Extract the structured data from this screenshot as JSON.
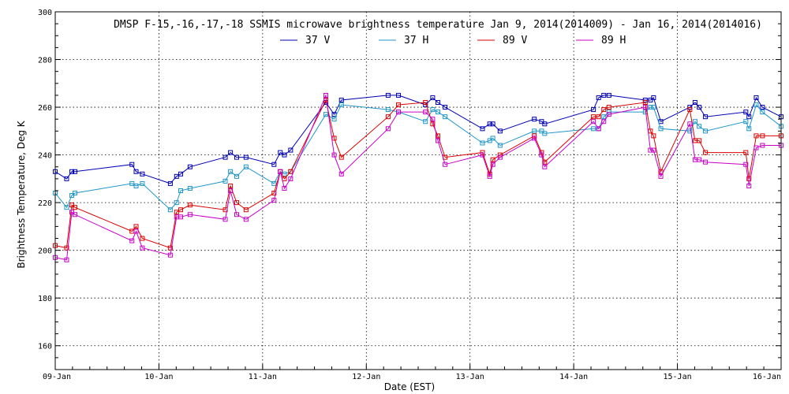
{
  "chart_data": {
    "type": "line",
    "title": "DMSP F-15,-16,-17,-18 SSMIS microwave brightness temperature Jan  9, 2014(2014009) - Jan 16, 2014(2014016)",
    "xlabel": "Date (EST)",
    "ylabel": "Brightness Temperature, Deg K",
    "xlim": [
      0,
      7
    ],
    "ylim": [
      150,
      300
    ],
    "yticks": [
      160,
      180,
      200,
      220,
      240,
      260,
      280,
      300
    ],
    "xticks": [
      0,
      1,
      2,
      3,
      4,
      5,
      6,
      7
    ],
    "xtick_labels": [
      "09-Jan",
      "10-Jan",
      "11-Jan",
      "12-Jan",
      "13-Jan",
      "14-Jan",
      "15-Jan",
      "16-Jan"
    ],
    "grid": true,
    "legend_position": "top",
    "x_units": "days since 09-Jan 00:00 EST",
    "series": [
      {
        "name": "37 V",
        "color": "#0000b4",
        "points": [
          [
            0.0,
            233
          ],
          [
            0.11,
            230
          ],
          [
            0.16,
            233
          ],
          [
            0.19,
            233
          ],
          [
            0.74,
            236
          ],
          [
            0.78,
            233
          ],
          [
            0.84,
            232
          ],
          [
            1.11,
            228
          ],
          [
            1.17,
            231
          ],
          [
            1.21,
            232
          ],
          [
            1.3,
            235
          ],
          [
            1.64,
            239
          ],
          [
            1.69,
            241
          ],
          [
            1.75,
            239
          ],
          [
            1.84,
            239
          ],
          [
            2.11,
            236
          ],
          [
            2.17,
            241
          ],
          [
            2.21,
            240
          ],
          [
            2.27,
            242
          ],
          [
            2.61,
            262
          ],
          [
            2.69,
            257
          ],
          [
            2.76,
            263
          ],
          [
            3.21,
            265
          ],
          [
            3.31,
            265
          ],
          [
            3.57,
            261
          ],
          [
            3.64,
            264
          ],
          [
            3.69,
            262
          ],
          [
            3.76,
            260
          ],
          [
            4.12,
            251
          ],
          [
            4.19,
            253
          ],
          [
            4.22,
            253
          ],
          [
            4.29,
            250
          ],
          [
            4.62,
            255
          ],
          [
            4.69,
            254
          ],
          [
            4.72,
            253
          ],
          [
            5.19,
            259
          ],
          [
            5.24,
            264
          ],
          [
            5.29,
            265
          ],
          [
            5.34,
            265
          ],
          [
            5.69,
            263
          ],
          [
            5.74,
            263
          ],
          [
            5.77,
            264
          ],
          [
            5.84,
            254
          ],
          [
            6.12,
            260
          ],
          [
            6.17,
            262
          ],
          [
            6.21,
            260
          ],
          [
            6.27,
            256
          ],
          [
            6.66,
            258
          ],
          [
            6.69,
            256
          ],
          [
            6.76,
            264
          ],
          [
            6.82,
            260
          ],
          [
            7.0,
            256
          ]
        ]
      },
      {
        "name": "37 H",
        "color": "#1e96c8",
        "points": [
          [
            0.0,
            224
          ],
          [
            0.11,
            218
          ],
          [
            0.16,
            223
          ],
          [
            0.19,
            224
          ],
          [
            0.74,
            228
          ],
          [
            0.78,
            227
          ],
          [
            0.84,
            228
          ],
          [
            1.11,
            217
          ],
          [
            1.17,
            220
          ],
          [
            1.21,
            225
          ],
          [
            1.3,
            226
          ],
          [
            1.64,
            229
          ],
          [
            1.69,
            233
          ],
          [
            1.75,
            231
          ],
          [
            1.84,
            235
          ],
          [
            2.11,
            228
          ],
          [
            2.17,
            233
          ],
          [
            2.21,
            232
          ],
          [
            2.27,
            233
          ],
          [
            2.61,
            257
          ],
          [
            2.69,
            255
          ],
          [
            2.76,
            261
          ],
          [
            3.21,
            259
          ],
          [
            3.31,
            258
          ],
          [
            3.57,
            254
          ],
          [
            3.64,
            259
          ],
          [
            3.69,
            258
          ],
          [
            3.76,
            256
          ],
          [
            4.12,
            245
          ],
          [
            4.19,
            246
          ],
          [
            4.22,
            247
          ],
          [
            4.29,
            244
          ],
          [
            4.62,
            250
          ],
          [
            4.69,
            250
          ],
          [
            4.72,
            249
          ],
          [
            5.19,
            251
          ],
          [
            5.24,
            251
          ],
          [
            5.29,
            256
          ],
          [
            5.34,
            258
          ],
          [
            5.69,
            258
          ],
          [
            5.74,
            260
          ],
          [
            5.77,
            260
          ],
          [
            5.84,
            251
          ],
          [
            6.12,
            250
          ],
          [
            6.17,
            254
          ],
          [
            6.21,
            252
          ],
          [
            6.27,
            250
          ],
          [
            6.66,
            254
          ],
          [
            6.69,
            251
          ],
          [
            6.76,
            261
          ],
          [
            6.82,
            258
          ],
          [
            7.0,
            252
          ]
        ]
      },
      {
        "name": "89 V",
        "color": "#dc0000",
        "points": [
          [
            0.0,
            202
          ],
          [
            0.11,
            201
          ],
          [
            0.16,
            219
          ],
          [
            0.19,
            218
          ],
          [
            0.74,
            208
          ],
          [
            0.78,
            210
          ],
          [
            0.84,
            205
          ],
          [
            1.11,
            201
          ],
          [
            1.17,
            216
          ],
          [
            1.21,
            217
          ],
          [
            1.3,
            219
          ],
          [
            1.64,
            217
          ],
          [
            1.69,
            227
          ],
          [
            1.75,
            220
          ],
          [
            1.84,
            217
          ],
          [
            2.11,
            224
          ],
          [
            2.17,
            233
          ],
          [
            2.21,
            230
          ],
          [
            2.27,
            233
          ],
          [
            2.61,
            263
          ],
          [
            2.69,
            247
          ],
          [
            2.76,
            239
          ],
          [
            3.21,
            256
          ],
          [
            3.31,
            261
          ],
          [
            3.57,
            262
          ],
          [
            3.64,
            253
          ],
          [
            3.69,
            248
          ],
          [
            3.76,
            239
          ],
          [
            4.12,
            241
          ],
          [
            4.19,
            232
          ],
          [
            4.22,
            238
          ],
          [
            4.29,
            240
          ],
          [
            4.62,
            248
          ],
          [
            4.69,
            241
          ],
          [
            4.72,
            237
          ],
          [
            5.19,
            256
          ],
          [
            5.24,
            256
          ],
          [
            5.29,
            259
          ],
          [
            5.34,
            260
          ],
          [
            5.69,
            262
          ],
          [
            5.74,
            250
          ],
          [
            5.77,
            248
          ],
          [
            5.84,
            233
          ],
          [
            6.12,
            259
          ],
          [
            6.17,
            246
          ],
          [
            6.21,
            246
          ],
          [
            6.27,
            241
          ],
          [
            6.66,
            241
          ],
          [
            6.69,
            230
          ],
          [
            6.76,
            248
          ],
          [
            6.82,
            248
          ],
          [
            7.0,
            248
          ]
        ]
      },
      {
        "name": "89 H",
        "color": "#c800c8",
        "points": [
          [
            0.0,
            197
          ],
          [
            0.11,
            196
          ],
          [
            0.16,
            216
          ],
          [
            0.19,
            215
          ],
          [
            0.74,
            204
          ],
          [
            0.78,
            208
          ],
          [
            0.84,
            201
          ],
          [
            1.11,
            198
          ],
          [
            1.17,
            214
          ],
          [
            1.21,
            214
          ],
          [
            1.3,
            215
          ],
          [
            1.64,
            213
          ],
          [
            1.69,
            225
          ],
          [
            1.75,
            215
          ],
          [
            1.84,
            213
          ],
          [
            2.11,
            221
          ],
          [
            2.17,
            233
          ],
          [
            2.21,
            226
          ],
          [
            2.27,
            230
          ],
          [
            2.61,
            265
          ],
          [
            2.69,
            240
          ],
          [
            2.76,
            232
          ],
          [
            3.21,
            251
          ],
          [
            3.31,
            258
          ],
          [
            3.57,
            258
          ],
          [
            3.64,
            255
          ],
          [
            3.69,
            246
          ],
          [
            3.76,
            236
          ],
          [
            4.12,
            240
          ],
          [
            4.19,
            231
          ],
          [
            4.22,
            236
          ],
          [
            4.29,
            239
          ],
          [
            4.62,
            247
          ],
          [
            4.69,
            240
          ],
          [
            4.72,
            235
          ],
          [
            5.19,
            254
          ],
          [
            5.24,
            251
          ],
          [
            5.29,
            254
          ],
          [
            5.34,
            257
          ],
          [
            5.69,
            260
          ],
          [
            5.74,
            242
          ],
          [
            5.77,
            242
          ],
          [
            5.84,
            231
          ],
          [
            6.12,
            253
          ],
          [
            6.17,
            238
          ],
          [
            6.21,
            238
          ],
          [
            6.27,
            237
          ],
          [
            6.66,
            236
          ],
          [
            6.69,
            227
          ],
          [
            6.76,
            243
          ],
          [
            6.82,
            244
          ],
          [
            7.0,
            244
          ]
        ]
      }
    ]
  }
}
